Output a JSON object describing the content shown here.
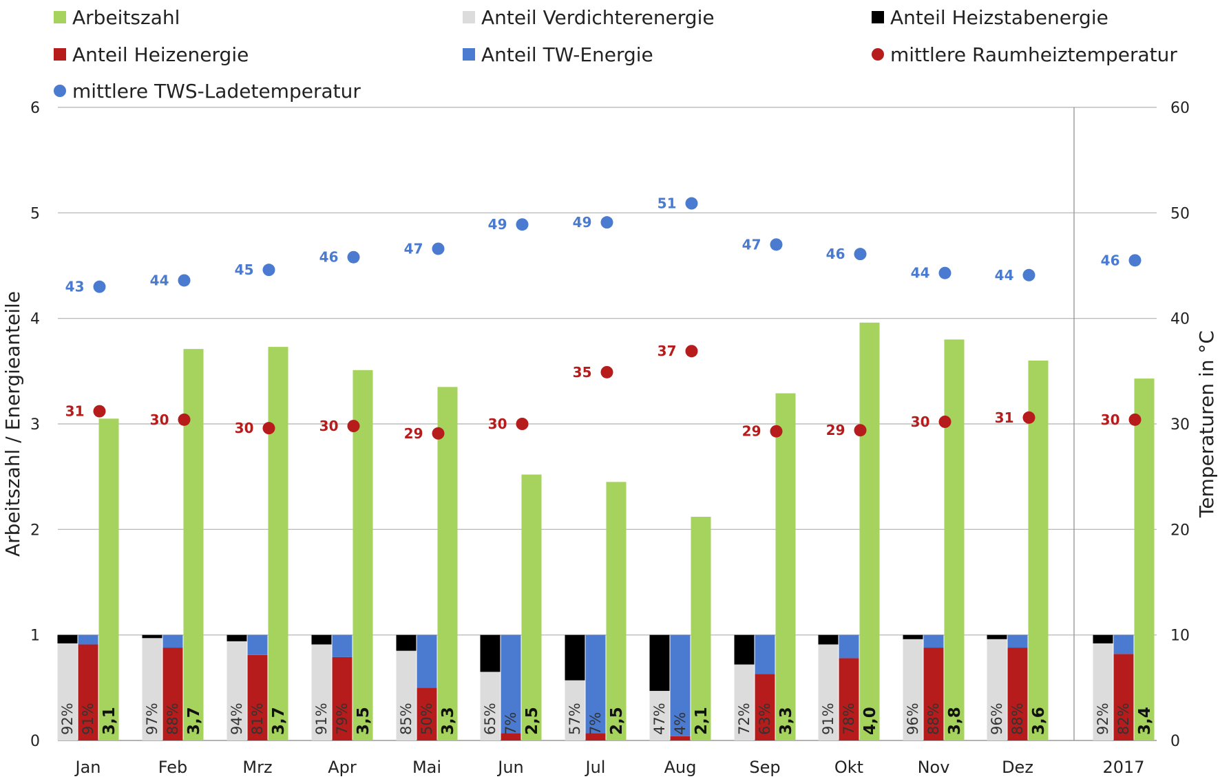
{
  "chart_data": {
    "type": "bar",
    "legend": [
      {
        "key": "arbeitszahl",
        "label": "Arbeitszahl",
        "marker": "square",
        "color": "#a6d35d"
      },
      {
        "key": "verdichter",
        "label": "Anteil Verdichterenergie",
        "marker": "square",
        "color": "#dcdcdc"
      },
      {
        "key": "heizstab",
        "label": "Anteil Heizstabenergie",
        "marker": "square",
        "color": "#000000"
      },
      {
        "key": "heiz",
        "label": "Anteil Heizenergie",
        "marker": "square",
        "color": "#b71c1c"
      },
      {
        "key": "tw",
        "label": "Anteil TW-Energie",
        "marker": "square",
        "color": "#4a7bd0"
      },
      {
        "key": "raum",
        "label": "mittlere Raumheiztemperatur",
        "marker": "circle",
        "color": "#b71c1c"
      },
      {
        "key": "tws",
        "label": "mittlere TWS-Ladetemperatur",
        "marker": "circle",
        "color": "#4a7bd0"
      }
    ],
    "categories": [
      "Jan",
      "Feb",
      "Mrz",
      "Apr",
      "Mai",
      "Jun",
      "Jul",
      "Aug",
      "Sep",
      "Okt",
      "Nov",
      "Dez",
      "2017"
    ],
    "series": [
      {
        "name": "Arbeitszahl",
        "values": [
          3.05,
          3.71,
          3.73,
          3.51,
          3.35,
          2.52,
          2.45,
          2.12,
          3.29,
          3.96,
          3.8,
          3.6,
          3.43
        ],
        "labels": [
          "3,1",
          "3,7",
          "3,7",
          "3,5",
          "3,3",
          "2,5",
          "2,5",
          "2,1",
          "3,3",
          "4,0",
          "3,8",
          "3,6",
          "3,4"
        ]
      },
      {
        "name": "Anteil Verdichterenergie",
        "values": [
          0.92,
          0.97,
          0.94,
          0.91,
          0.85,
          0.65,
          0.57,
          0.47,
          0.72,
          0.91,
          0.96,
          0.96,
          0.92
        ],
        "labels": [
          "92%",
          "97%",
          "94%",
          "91%",
          "85%",
          "65%",
          "57%",
          "47%",
          "72%",
          "91%",
          "96%",
          "96%",
          "92%"
        ]
      },
      {
        "name": "Anteil Heizstabenergie",
        "values": [
          0.08,
          0.03,
          0.06,
          0.09,
          0.15,
          0.35,
          0.43,
          0.53,
          0.28,
          0.09,
          0.04,
          0.04,
          0.08
        ]
      },
      {
        "name": "Anteil Heizenergie",
        "values": [
          0.91,
          0.88,
          0.81,
          0.79,
          0.5,
          0.07,
          0.07,
          0.04,
          0.63,
          0.78,
          0.88,
          0.88,
          0.82
        ],
        "labels": [
          "91%",
          "88%",
          "81%",
          "79%",
          "50%",
          "7%",
          "7%",
          "4%",
          "63%",
          "78%",
          "88%",
          "88%",
          "82%"
        ]
      },
      {
        "name": "Anteil TW-Energie",
        "values": [
          0.09,
          0.12,
          0.19,
          0.21,
          0.5,
          0.93,
          0.93,
          0.96,
          0.37,
          0.22,
          0.12,
          0.12,
          0.18
        ]
      },
      {
        "name": "mittlere Raumheiztemperatur",
        "axis": "right",
        "values": [
          31.2,
          30.4,
          29.6,
          29.8,
          29.1,
          30.0,
          34.9,
          36.9,
          29.3,
          29.4,
          30.2,
          30.6,
          30.4
        ],
        "labels": [
          "31",
          "30",
          "30",
          "30",
          "29",
          "30",
          "35",
          "37",
          "29",
          "29",
          "30",
          "31",
          "30"
        ]
      },
      {
        "name": "mittlere TWS-Ladetemperatur",
        "axis": "right",
        "values": [
          43.0,
          43.6,
          44.6,
          45.8,
          46.6,
          48.9,
          49.1,
          50.9,
          47.0,
          46.1,
          44.3,
          44.1,
          45.5
        ],
        "labels": [
          "43",
          "44",
          "45",
          "46",
          "47",
          "49",
          "49",
          "51",
          "47",
          "46",
          "44",
          "44",
          "46"
        ]
      }
    ],
    "ylabel": "Arbeitszahl / Energieanteile",
    "ylabel_right": "Temperaturen in °C",
    "ylim": [
      0,
      6
    ],
    "ylim_right": [
      0,
      60
    ],
    "yticks": [
      "0",
      "1",
      "2",
      "3",
      "4",
      "5",
      "6"
    ],
    "yticks_right": [
      "0",
      "10",
      "20",
      "30",
      "40",
      "50",
      "60"
    ],
    "grid": true,
    "legend_position": "top"
  }
}
